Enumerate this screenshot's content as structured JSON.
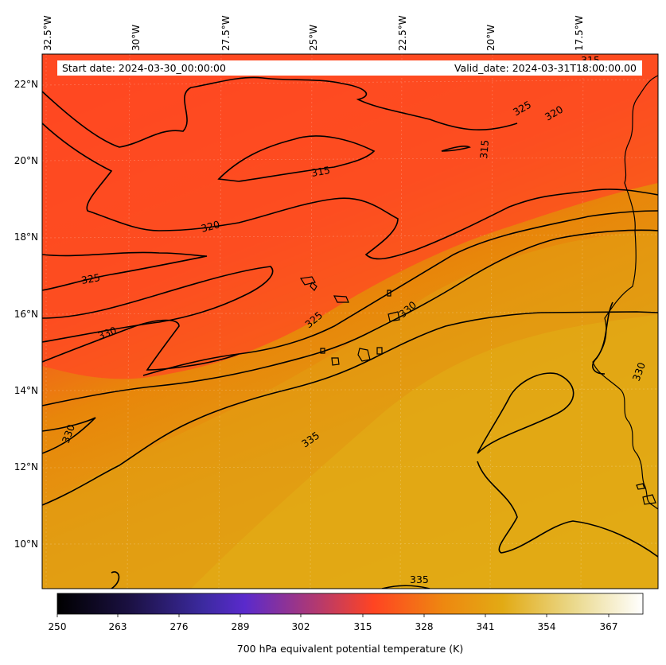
{
  "map": {
    "lon_labels": [
      "32.5°W",
      "30°W",
      "27.5°W",
      "25°W",
      "22.5°W",
      "20°W",
      "17.5°W"
    ],
    "lat_labels": [
      "22°N",
      "20°N",
      "18°N",
      "16°N",
      "14°N",
      "12°N",
      "10°N"
    ],
    "start_date": "Start date: 2024-03-30_00:00:00",
    "valid_date": "Valid_date: 2024-03-31T18:00:00.00",
    "contour_labels": [
      "315",
      "315",
      "320",
      "320",
      "325",
      "325",
      "325",
      "330",
      "330",
      "330",
      "330",
      "335",
      "335",
      "315"
    ],
    "colors": {
      "field_low": "#ff4422",
      "field_mid": "#e8860a",
      "field_high": "#e0aa14",
      "contour": "#000000",
      "land": "#e8a010"
    }
  },
  "colorbar": {
    "ticks": [
      "250",
      "263",
      "276",
      "289",
      "302",
      "315",
      "328",
      "341",
      "354",
      "367"
    ],
    "label": "700 hPa equivalent potential temperature (K)",
    "colormap": "CMRmap",
    "range": [
      250,
      372
    ]
  }
}
